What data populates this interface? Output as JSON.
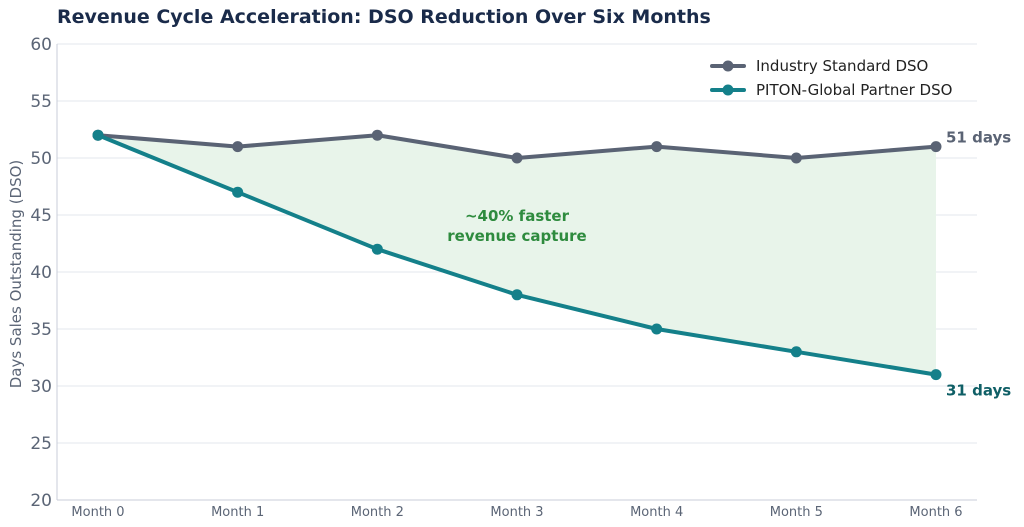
{
  "chart_data": {
    "type": "line",
    "title": "Revenue Cycle Acceleration: DSO Reduction Over Six Months",
    "ylabel": "Days Sales Outstanding (DSO)",
    "xlabel": "",
    "categories": [
      "Month 0",
      "Month 1",
      "Month 2",
      "Month 3",
      "Month 4",
      "Month 5",
      "Month 6"
    ],
    "ylim": [
      20,
      60
    ],
    "yticks": [
      20,
      25,
      30,
      35,
      40,
      45,
      50,
      55,
      60
    ],
    "grid": "horizontal",
    "legend_position": "top-right",
    "series": [
      {
        "name": "Industry Standard DSO",
        "color": "#5a6374",
        "values": [
          52,
          51,
          52,
          50,
          51,
          50,
          51
        ],
        "end_label": "51 days"
      },
      {
        "name": "PITON-Global Partner DSO",
        "color": "#14808a",
        "values": [
          52,
          47,
          42,
          38,
          35,
          33,
          31
        ],
        "end_label": "31 days"
      }
    ],
    "shaded_gap_color": "#e8f4ea",
    "annotation": {
      "lines": [
        "~40% faster",
        "revenue capture"
      ],
      "x": 3,
      "y": 44.3,
      "color": "#2e8b3e"
    }
  }
}
